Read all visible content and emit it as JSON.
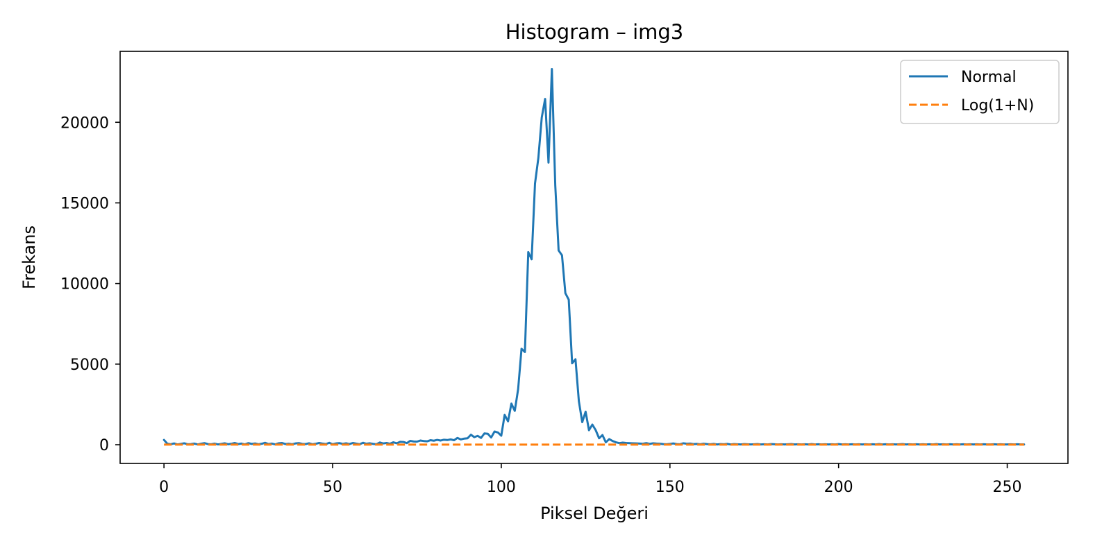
{
  "chart_data": {
    "type": "line",
    "title": "Histogram – img3",
    "xlabel": "Piksel Değeri",
    "ylabel": "Frekans",
    "xlim": [
      -13,
      268
    ],
    "ylim": [
      -1160,
      24400
    ],
    "xticks": [
      0,
      50,
      100,
      150,
      200,
      250
    ],
    "yticks": [
      0,
      5000,
      10000,
      15000,
      20000
    ],
    "grid": false,
    "legend_position": "top-right",
    "series": [
      {
        "name": "Normal",
        "color": "#1f77b4",
        "style": "solid",
        "x": [
          0,
          1,
          2,
          3,
          4,
          5,
          6,
          7,
          8,
          9,
          10,
          11,
          12,
          13,
          14,
          15,
          16,
          17,
          18,
          19,
          20,
          21,
          22,
          23,
          24,
          25,
          26,
          27,
          28,
          29,
          30,
          31,
          32,
          33,
          34,
          35,
          36,
          37,
          38,
          39,
          40,
          41,
          42,
          43,
          44,
          45,
          46,
          47,
          48,
          49,
          50,
          51,
          52,
          53,
          54,
          55,
          56,
          57,
          58,
          59,
          60,
          61,
          62,
          63,
          64,
          65,
          66,
          67,
          68,
          69,
          70,
          71,
          72,
          73,
          74,
          75,
          76,
          77,
          78,
          79,
          80,
          81,
          82,
          83,
          84,
          85,
          86,
          87,
          88,
          89,
          90,
          91,
          92,
          93,
          94,
          95,
          96,
          97,
          98,
          99,
          100,
          101,
          102,
          103,
          104,
          105,
          106,
          107,
          108,
          109,
          110,
          111,
          112,
          113,
          114,
          115,
          116,
          117,
          118,
          119,
          120,
          121,
          122,
          123,
          124,
          125,
          126,
          127,
          128,
          129,
          130,
          131,
          132,
          133,
          134,
          135,
          136,
          137,
          138,
          139,
          140,
          141,
          142,
          143,
          144,
          145,
          146,
          147,
          148,
          149,
          150,
          151,
          152,
          153,
          154,
          155,
          156,
          157,
          158,
          159,
          160,
          161,
          162,
          163,
          164,
          165,
          166,
          167,
          168,
          169,
          170,
          171,
          172,
          173,
          174,
          175,
          176,
          177,
          178,
          179,
          180,
          181,
          182,
          183,
          184,
          185,
          186,
          187,
          188,
          189,
          190,
          191,
          192,
          193,
          194,
          195,
          196,
          197,
          198,
          199,
          200,
          201,
          202,
          203,
          204,
          205,
          206,
          207,
          208,
          209,
          210,
          211,
          212,
          213,
          214,
          215,
          216,
          217,
          218,
          219,
          220,
          221,
          222,
          223,
          224,
          225,
          226,
          227,
          228,
          229,
          230,
          231,
          232,
          233,
          234,
          235,
          236,
          237,
          238,
          239,
          240,
          241,
          242,
          243,
          244,
          245,
          246,
          247,
          248,
          249,
          250,
          251,
          252,
          253,
          254,
          255
        ],
        "values": [
          300,
          60,
          30,
          80,
          20,
          50,
          90,
          30,
          40,
          70,
          20,
          60,
          100,
          40,
          30,
          70,
          20,
          50,
          90,
          30,
          60,
          110,
          40,
          70,
          20,
          100,
          50,
          80,
          30,
          60,
          120,
          40,
          70,
          20,
          90,
          110,
          40,
          60,
          30,
          80,
          100,
          50,
          40,
          90,
          30,
          60,
          110,
          70,
          40,
          120,
          30,
          80,
          100,
          50,
          90,
          40,
          110,
          70,
          30,
          120,
          60,
          90,
          50,
          30,
          140,
          80,
          110,
          60,
          150,
          90,
          180,
          170,
          100,
          240,
          200,
          190,
          260,
          230,
          210,
          280,
          250,
          300,
          260,
          310,
          290,
          330,
          280,
          420,
          330,
          380,
          400,
          620,
          470,
          550,
          420,
          700,
          680,
          450,
          820,
          760,
          560,
          1850,
          1450,
          2550,
          2100,
          3450,
          5950,
          5750,
          11950,
          11500,
          16200,
          17800,
          20300,
          21450,
          17500,
          23300,
          16100,
          12050,
          11750,
          9400,
          9000,
          5050,
          5300,
          2700,
          1400,
          2050,
          900,
          1250,
          900,
          400,
          600,
          150,
          350,
          230,
          150,
          100,
          130,
          110,
          100,
          90,
          80,
          70,
          60,
          100,
          50,
          90,
          70,
          60,
          40,
          30,
          50,
          80,
          40,
          30,
          90,
          60,
          70,
          40,
          50,
          30,
          60,
          40,
          30,
          50,
          20,
          40,
          30,
          50,
          20,
          40,
          30,
          20,
          40,
          30,
          20,
          30,
          40,
          20,
          30,
          20,
          40,
          30,
          20,
          30,
          20,
          30,
          40,
          20,
          30,
          20,
          30,
          20,
          40,
          20,
          30,
          20,
          30,
          20,
          30,
          20,
          40,
          20,
          30,
          20,
          30,
          20,
          30,
          20,
          30,
          20,
          30,
          20,
          40,
          20,
          30,
          20,
          30,
          20,
          30,
          40,
          20,
          30,
          20,
          30,
          20,
          30,
          20,
          30,
          20,
          40,
          20,
          30,
          20,
          30,
          20,
          30,
          20,
          30,
          20,
          30,
          20,
          30,
          20,
          30,
          20,
          20,
          30,
          20,
          30,
          20,
          20,
          30,
          20,
          30,
          20,
          20
        ]
      },
      {
        "name": "Log(1+N)",
        "color": "#ff7f0e",
        "style": "dashed",
        "x": [
          0,
          255
        ],
        "values": [
          5,
          5
        ]
      }
    ]
  }
}
